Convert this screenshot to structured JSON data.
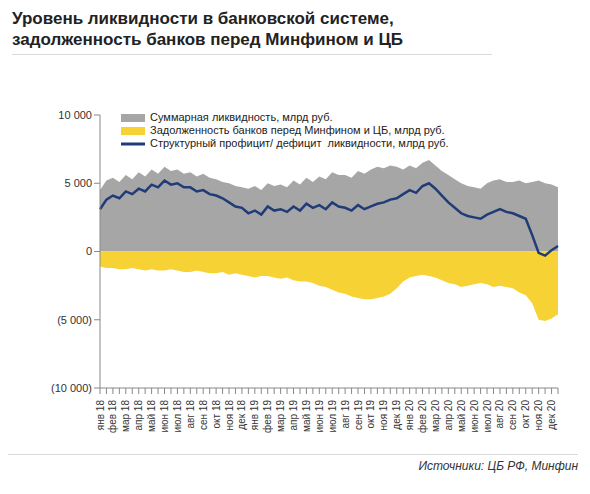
{
  "chart_data": {
    "type": "composed",
    "title": "Уровень ликвидности в банковской системе, задолженность банков перед Минфином и ЦБ",
    "source": "Источники: ЦБ РФ, Минфин",
    "legend": "top-left",
    "categories": [
      "янв 18",
      null,
      "фев 18",
      null,
      "мар 18",
      null,
      "апр 18",
      null,
      "май 18",
      null,
      "июн 18",
      null,
      "июл 18",
      null,
      "авг 18",
      null,
      "сен 18",
      null,
      "окт 18",
      null,
      "ноя 18",
      null,
      "дек 18",
      null,
      "янв 19",
      null,
      "фев 19",
      null,
      "мар 19",
      null,
      "апр 19",
      null,
      "май 19",
      null,
      "июн 19",
      null,
      "июл 19",
      null,
      "авг 19",
      null,
      "сен 19",
      null,
      "окт 19",
      null,
      "ноя 19",
      null,
      "дек 19",
      null,
      "янв 20",
      null,
      "фев 20",
      null,
      "мар 20",
      null,
      "апр 20",
      null,
      "май 20",
      null,
      "июн 20",
      null,
      "июл 20",
      null,
      "авг 20",
      null,
      "сен 20",
      null,
      "окт 20",
      null,
      "ноя 20",
      null,
      "дек 20",
      null
    ],
    "ylim": [
      -10000,
      10000
    ],
    "yticks": [
      {
        "value": 10000,
        "label": "10 000"
      },
      {
        "value": 5000,
        "label": "5 000"
      },
      0,
      {
        "value": -5000,
        "label": "(5 000)"
      },
      {
        "value": -10000,
        "label": "(10 000)"
      }
    ],
    "grid": false,
    "series": [
      {
        "name": "Суммарная ликвидность, млрд руб.",
        "type": "area",
        "color": "#a6a6a6",
        "values": [
          4500,
          5200,
          5400,
          5100,
          5600,
          5300,
          5800,
          5500,
          6000,
          5700,
          6200,
          5900,
          6000,
          5700,
          5800,
          5500,
          5700,
          5400,
          5300,
          5100,
          5000,
          4800,
          4700,
          4600,
          4800,
          4500,
          5000,
          4800,
          4900,
          4700,
          5200,
          4900,
          5400,
          5100,
          5500,
          5300,
          5800,
          5600,
          5600,
          5400,
          5900,
          5700,
          6000,
          6200,
          6100,
          6300,
          6200,
          6000,
          6300,
          6100,
          6500,
          6700,
          6300,
          5900,
          5600,
          5300,
          5000,
          4800,
          4700,
          4600,
          5000,
          5200,
          5300,
          5100,
          5100,
          5200,
          5000,
          5100,
          5200,
          5000,
          4900,
          4700
        ]
      },
      {
        "name": "Задолженность банков перед Минфином и ЦБ, млрд руб.",
        "type": "area",
        "color": "#f7d234",
        "values": [
          -1100,
          -1200,
          -1200,
          -1300,
          -1300,
          -1200,
          -1300,
          -1400,
          -1300,
          -1400,
          -1400,
          -1300,
          -1400,
          -1500,
          -1500,
          -1400,
          -1500,
          -1600,
          -1600,
          -1500,
          -1700,
          -1600,
          -1700,
          -1800,
          -1900,
          -1800,
          -1800,
          -1900,
          -2000,
          -1900,
          -2100,
          -2200,
          -2200,
          -2300,
          -2500,
          -2600,
          -2800,
          -3000,
          -3100,
          -3300,
          -3400,
          -3500,
          -3500,
          -3400,
          -3300,
          -3100,
          -2700,
          -2200,
          -1900,
          -1800,
          -1700,
          -1800,
          -1900,
          -2100,
          -2300,
          -2400,
          -2600,
          -2500,
          -2400,
          -2300,
          -2400,
          -2600,
          -2500,
          -2600,
          -2700,
          -3000,
          -3200,
          -3800,
          -5000,
          -5100,
          -4900,
          -4600
        ]
      },
      {
        "name": "Структурный профицит/ дефицит  ликвидности, млрд руб.",
        "type": "line",
        "color": "#1f3c78",
        "values": [
          3100,
          3800,
          4100,
          3900,
          4400,
          4200,
          4600,
          4400,
          4900,
          4700,
          5200,
          4900,
          5000,
          4700,
          4700,
          4400,
          4500,
          4200,
          4100,
          3900,
          3600,
          3300,
          3200,
          2800,
          3000,
          2700,
          3300,
          3000,
          3100,
          2900,
          3300,
          3000,
          3500,
          3200,
          3400,
          3100,
          3600,
          3300,
          3200,
          3000,
          3400,
          3100,
          3300,
          3500,
          3600,
          3800,
          3900,
          4200,
          4500,
          4300,
          4800,
          5000,
          4600,
          4100,
          3600,
          3200,
          2800,
          2600,
          2500,
          2400,
          2700,
          2900,
          3100,
          2900,
          2800,
          2600,
          2400,
          1200,
          -100,
          -300,
          100,
          400
        ]
      }
    ]
  }
}
